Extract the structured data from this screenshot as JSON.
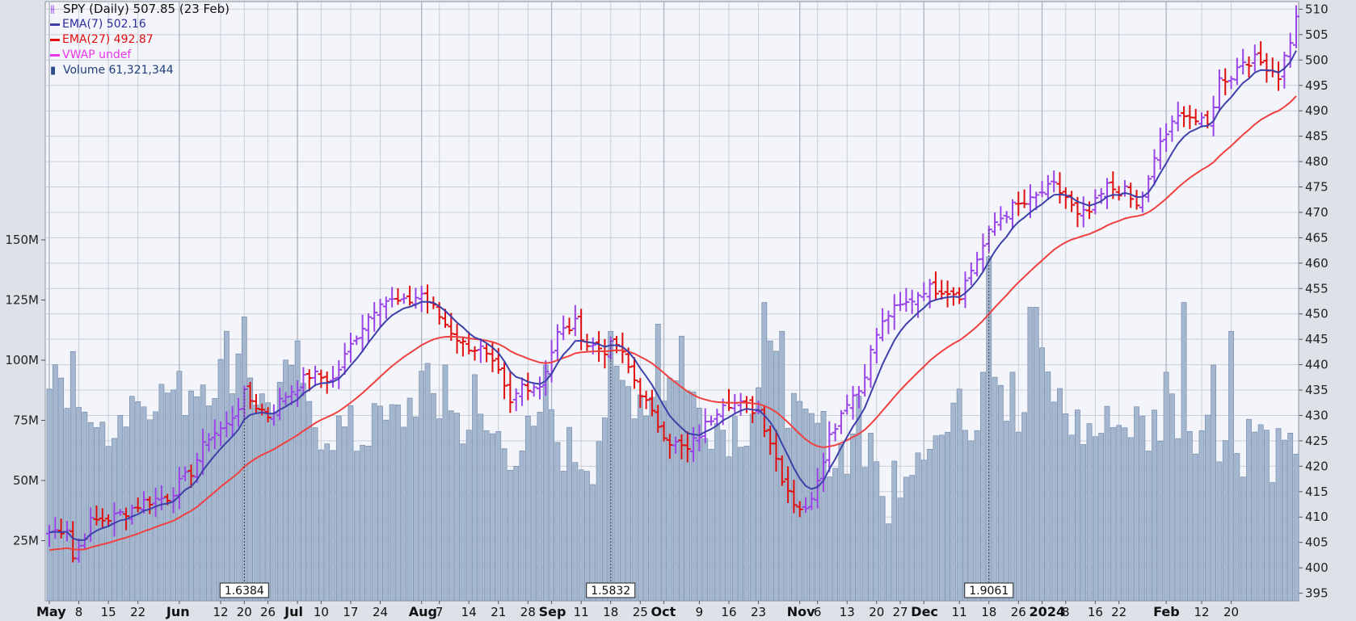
{
  "legend": {
    "title": "SPY (Daily) 507.85 (23 Feb)",
    "ema7": "EMA(7) 502.16",
    "ema27": "EMA(27) 492.87",
    "vwap": "VWAP undef",
    "volume": "Volume 61,321,344"
  },
  "colors": {
    "background": "#f3f5fa",
    "grid": "#c9ced8",
    "up": "#9a44e8",
    "down": "#e00d0d",
    "ema7": "#3d40a8",
    "ema27": "#f04040",
    "vwap": "#e837e8",
    "volume_fill": "#a4b7cf",
    "volume_stroke": "#6c85a6"
  },
  "chart_data": {
    "type": "ohlc",
    "price_axis": {
      "ticks": [
        395,
        400,
        405,
        410,
        415,
        420,
        425,
        430,
        435,
        440,
        445,
        450,
        455,
        460,
        465,
        470,
        475,
        480,
        485,
        490,
        495,
        500,
        505,
        510
      ],
      "ylim": [
        393.5,
        511.5
      ]
    },
    "volume_axis": {
      "ticks": [
        "25M",
        "50M",
        "75M",
        "100M",
        "125M",
        "150M"
      ],
      "tick_values": [
        25,
        50,
        75,
        100,
        125,
        150
      ],
      "unit": "M"
    },
    "x_labels": [
      {
        "label": "May",
        "major": true,
        "bar": 0
      },
      {
        "label": "8",
        "bar": 5
      },
      {
        "label": "15",
        "bar": 10
      },
      {
        "label": "22",
        "bar": 15
      },
      {
        "label": "Jun",
        "major": true,
        "bar": 22
      },
      {
        "label": "12",
        "bar": 29
      },
      {
        "label": "20",
        "bar": 33
      },
      {
        "label": "26",
        "bar": 37
      },
      {
        "label": "Jul",
        "major": true,
        "bar": 42
      },
      {
        "label": "10",
        "bar": 46
      },
      {
        "label": "17",
        "bar": 51
      },
      {
        "label": "24",
        "bar": 56
      },
      {
        "label": "Aug",
        "major": true,
        "bar": 63
      },
      {
        "label": "7",
        "bar": 66
      },
      {
        "label": "14",
        "bar": 71
      },
      {
        "label": "21",
        "bar": 76
      },
      {
        "label": "28",
        "bar": 81
      },
      {
        "label": "Sep",
        "major": true,
        "bar": 85
      },
      {
        "label": "11",
        "bar": 90
      },
      {
        "label": "18",
        "bar": 95
      },
      {
        "label": "25",
        "bar": 100
      },
      {
        "label": "Oct",
        "major": true,
        "bar": 104
      },
      {
        "label": "9",
        "bar": 110
      },
      {
        "label": "16",
        "bar": 115
      },
      {
        "label": "23",
        "bar": 120
      },
      {
        "label": "Nov",
        "major": true,
        "bar": 127
      },
      {
        "label": "6",
        "bar": 130
      },
      {
        "label": "13",
        "bar": 135
      },
      {
        "label": "20",
        "bar": 140
      },
      {
        "label": "27",
        "bar": 144
      },
      {
        "label": "Dec",
        "major": true,
        "bar": 148
      },
      {
        "label": "11",
        "bar": 154
      },
      {
        "label": "18",
        "bar": 159
      },
      {
        "label": "26",
        "bar": 164
      },
      {
        "label": "2024",
        "major": true,
        "bar": 168
      },
      {
        "label": "8",
        "bar": 172
      },
      {
        "label": "16",
        "bar": 177
      },
      {
        "label": "22",
        "bar": 181
      },
      {
        "label": "Feb",
        "major": true,
        "bar": 189
      },
      {
        "label": "12",
        "bar": 195
      },
      {
        "label": "20",
        "bar": 200
      }
    ],
    "markers": [
      {
        "label": "1.6384",
        "bar": 33
      },
      {
        "label": "1.5832",
        "bar": 95
      },
      {
        "label": "1.9061",
        "bar": 159
      }
    ],
    "keypoints": [
      [
        0,
        407
      ],
      [
        3,
        408
      ],
      [
        4,
        402
      ],
      [
        7,
        409
      ],
      [
        11,
        410
      ],
      [
        16,
        413
      ],
      [
        20,
        414
      ],
      [
        24,
        419
      ],
      [
        27,
        426
      ],
      [
        30,
        428
      ],
      [
        33,
        434
      ],
      [
        37,
        430
      ],
      [
        40,
        434
      ],
      [
        44,
        438
      ],
      [
        48,
        437
      ],
      [
        52,
        446
      ],
      [
        56,
        453
      ],
      [
        60,
        452
      ],
      [
        63,
        454
      ],
      [
        67,
        448
      ],
      [
        70,
        444
      ],
      [
        73,
        443
      ],
      [
        76,
        438
      ],
      [
        78,
        432
      ],
      [
        80,
        436
      ],
      [
        83,
        436
      ],
      [
        86,
        446
      ],
      [
        89,
        448
      ],
      [
        91,
        444
      ],
      [
        94,
        443
      ],
      [
        96,
        444
      ],
      [
        99,
        437
      ],
      [
        102,
        430
      ],
      [
        105,
        425
      ],
      [
        108,
        423
      ],
      [
        111,
        428
      ],
      [
        114,
        433
      ],
      [
        117,
        432
      ],
      [
        120,
        431
      ],
      [
        122,
        425
      ],
      [
        124,
        418
      ],
      [
        126,
        413
      ],
      [
        128,
        411
      ],
      [
        130,
        418
      ],
      [
        132,
        426
      ],
      [
        135,
        433
      ],
      [
        137,
        435
      ],
      [
        140,
        446
      ],
      [
        142,
        450
      ],
      [
        145,
        452
      ],
      [
        148,
        455
      ],
      [
        151,
        455
      ],
      [
        154,
        454
      ],
      [
        157,
        461
      ],
      [
        160,
        468
      ],
      [
        163,
        471
      ],
      [
        166,
        472
      ],
      [
        168,
        474
      ],
      [
        170,
        475
      ],
      [
        172,
        473
      ],
      [
        174,
        469
      ],
      [
        176,
        470
      ],
      [
        179,
        475
      ],
      [
        182,
        474
      ],
      [
        184,
        471
      ],
      [
        186,
        476
      ],
      [
        188,
        484
      ],
      [
        190,
        487
      ],
      [
        192,
        490
      ],
      [
        194,
        488
      ],
      [
        196,
        487
      ],
      [
        198,
        496
      ],
      [
        200,
        497
      ],
      [
        202,
        500
      ],
      [
        204,
        500
      ],
      [
        206,
        499
      ],
      [
        208,
        497
      ],
      [
        210,
        504
      ],
      [
        211,
        508
      ]
    ],
    "volume_keypoints": [
      [
        0,
        85
      ],
      [
        4,
        95
      ],
      [
        8,
        70
      ],
      [
        10,
        75
      ],
      [
        14,
        80
      ],
      [
        18,
        90
      ],
      [
        22,
        85
      ],
      [
        25,
        92
      ],
      [
        30,
        95
      ],
      [
        33,
        105
      ],
      [
        36,
        80
      ],
      [
        40,
        90
      ],
      [
        44,
        75
      ],
      [
        48,
        72
      ],
      [
        52,
        68
      ],
      [
        56,
        70
      ],
      [
        60,
        78
      ],
      [
        63,
        90
      ],
      [
        66,
        80
      ],
      [
        70,
        75
      ],
      [
        74,
        70
      ],
      [
        78,
        65
      ],
      [
        82,
        66
      ],
      [
        85,
        70
      ],
      [
        88,
        62
      ],
      [
        92,
        60
      ],
      [
        95,
        90
      ],
      [
        98,
        88
      ],
      [
        102,
        85
      ],
      [
        105,
        92
      ],
      [
        108,
        85
      ],
      [
        111,
        78
      ],
      [
        114,
        72
      ],
      [
        118,
        75
      ],
      [
        121,
        98
      ],
      [
        124,
        92
      ],
      [
        127,
        70
      ],
      [
        130,
        72
      ],
      [
        133,
        60
      ],
      [
        136,
        66
      ],
      [
        139,
        58
      ],
      [
        142,
        50
      ],
      [
        145,
        58
      ],
      [
        148,
        70
      ],
      [
        151,
        68
      ],
      [
        154,
        72
      ],
      [
        157,
        80
      ],
      [
        159,
        112
      ],
      [
        162,
        85
      ],
      [
        165,
        70
      ],
      [
        168,
        95
      ],
      [
        171,
        82
      ],
      [
        174,
        72
      ],
      [
        177,
        70
      ],
      [
        180,
        72
      ],
      [
        183,
        75
      ],
      [
        186,
        70
      ],
      [
        189,
        80
      ],
      [
        192,
        78
      ],
      [
        195,
        72
      ],
      [
        198,
        70
      ],
      [
        201,
        60
      ],
      [
        204,
        72
      ],
      [
        207,
        60
      ],
      [
        211,
        58
      ]
    ],
    "volume_spikes": {
      "0": 88,
      "3": 80,
      "8": 72,
      "14": 85,
      "19": 90,
      "30": 112,
      "33": 118,
      "42": 108,
      "55": 82,
      "67": 98,
      "72": 94,
      "84": 98,
      "95": 112,
      "103": 115,
      "107": 110,
      "121": 124,
      "124": 112,
      "137": 85,
      "142": 32,
      "154": 88,
      "158": 95,
      "159": 143,
      "163": 95,
      "166": 122,
      "167": 122,
      "180": 72,
      "189": 95,
      "192": 124,
      "197": 98,
      "200": 112,
      "211": 61
    }
  }
}
